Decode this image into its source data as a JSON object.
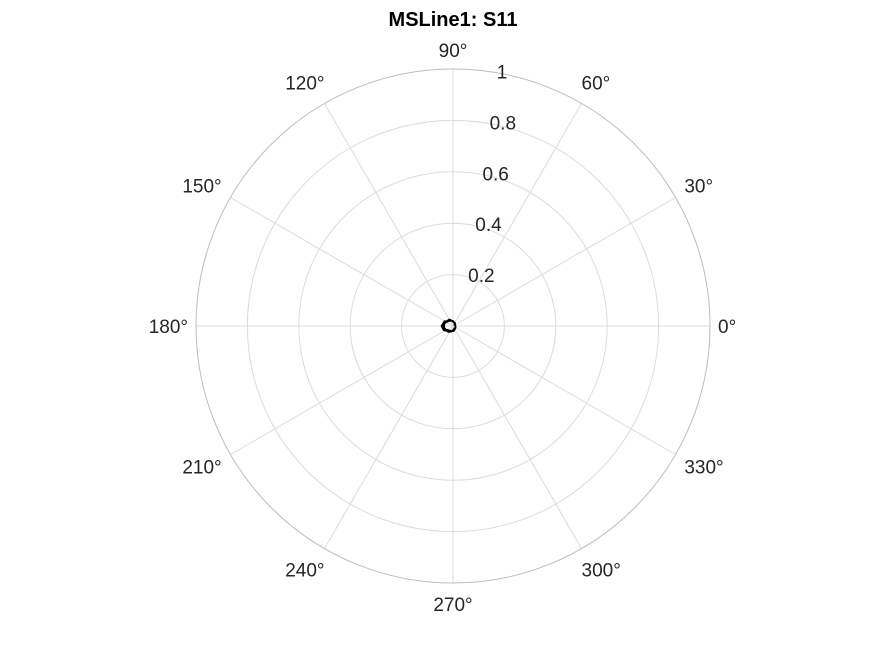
{
  "chart_data": {
    "type": "polar-line",
    "title": "MSLine1: S11",
    "rlim": [
      0,
      1
    ],
    "r_ticks": [
      0.2,
      0.4,
      0.6,
      0.8,
      1
    ],
    "r_tick_labels": [
      "0.2",
      "0.4",
      "0.6",
      "0.8",
      "1"
    ],
    "theta_ticks": [
      0,
      30,
      60,
      90,
      120,
      150,
      180,
      210,
      240,
      270,
      300,
      330
    ],
    "theta_tick_labels": [
      "0°",
      "30°",
      "60°",
      "90°",
      "120°",
      "150°",
      "180°",
      "210°",
      "240°",
      "270°",
      "300°",
      "330°"
    ],
    "grid": true,
    "series": [
      {
        "color": "#000000",
        "points": [
          {
            "theta": 10,
            "r": 0.005
          },
          {
            "theta": 60,
            "r": 0.015
          },
          {
            "theta": 120,
            "r": 0.03
          },
          {
            "theta": 160,
            "r": 0.035
          },
          {
            "theta": 190,
            "r": 0.035
          },
          {
            "theta": 230,
            "r": 0.03
          },
          {
            "theta": 280,
            "r": 0.02
          },
          {
            "theta": 330,
            "r": 0.012
          },
          {
            "theta": 20,
            "r": 0.01
          },
          {
            "theta": 90,
            "r": 0.02
          },
          {
            "theta": 150,
            "r": 0.038
          },
          {
            "theta": 180,
            "r": 0.045
          },
          {
            "theta": 205,
            "r": 0.04
          },
          {
            "theta": 250,
            "r": 0.025
          },
          {
            "theta": 300,
            "r": 0.015
          },
          {
            "theta": 350,
            "r": 0.01
          },
          {
            "theta": 45,
            "r": 0.012
          },
          {
            "theta": 110,
            "r": 0.025
          },
          {
            "theta": 170,
            "r": 0.04
          },
          {
            "theta": 200,
            "r": 0.036
          },
          {
            "theta": 260,
            "r": 0.02
          },
          {
            "theta": 320,
            "r": 0.01
          }
        ]
      }
    ]
  }
}
